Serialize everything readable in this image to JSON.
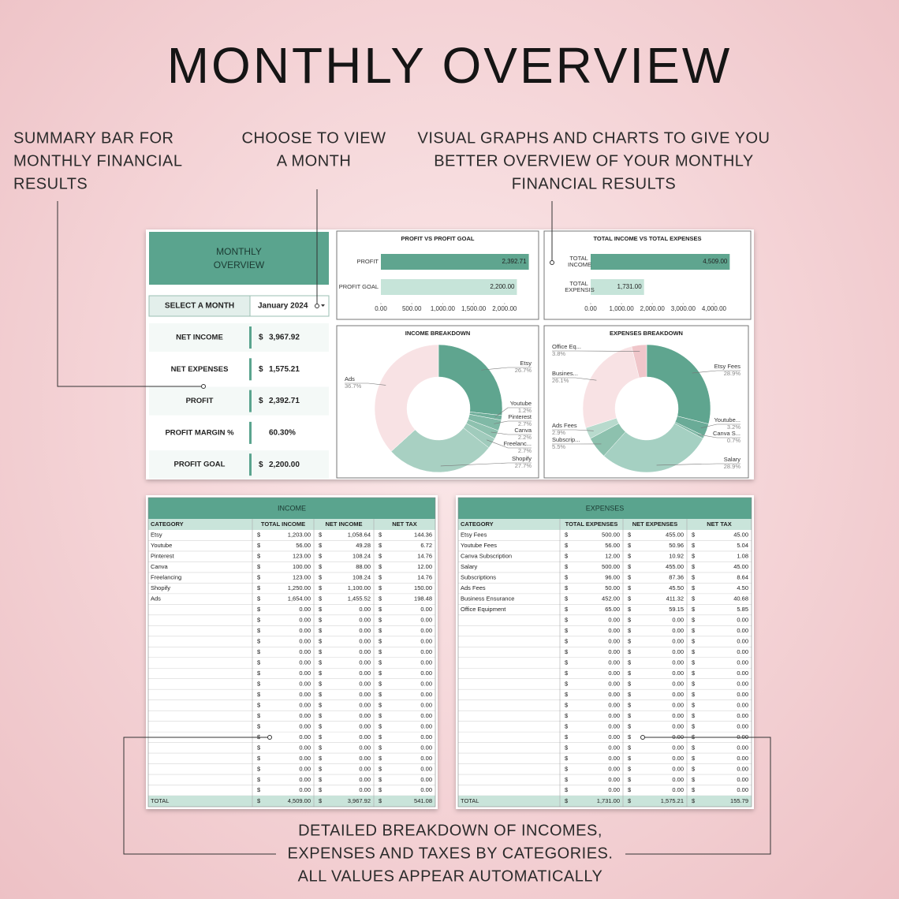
{
  "title": "MONTHLY OVERVIEW",
  "callouts": [
    [
      "SUMMARY BAR FOR",
      "MONTHLY FINANCIAL",
      "RESULTS"
    ],
    [
      "CHOOSE TO VIEW",
      "A MONTH"
    ],
    [
      "VISUAL GRAPHS AND CHARTS TO GIVE YOU",
      "BETTER OVERVIEW OF YOUR MONTHLY",
      "FINANCIAL RESULTS"
    ]
  ],
  "summary": {
    "header": [
      "MONTHLY",
      "OVERVIEW"
    ],
    "select_label": "SELECT A MONTH",
    "selected_month": "January 2024",
    "items": [
      {
        "label": "NET INCOME",
        "currency": "$",
        "value": "3,967.92"
      },
      {
        "label": "NET EXPENSES",
        "currency": "$",
        "value": "1,575.21"
      },
      {
        "label": "PROFIT",
        "currency": "$",
        "value": "2,392.71"
      },
      {
        "label": "PROFIT MARGIN  %",
        "value": "60.30%"
      },
      {
        "label": "PROFIT GOAL",
        "currency": "$",
        "value": "2,200.00"
      }
    ]
  },
  "chart_data": [
    {
      "type": "hbar",
      "title": "PROFIT  VS PROFIT GOAL",
      "categories": [
        "PROFIT",
        "PROFIT GOAL"
      ],
      "values": [
        2392.71,
        2200
      ],
      "value_labels": [
        "2,392.71",
        "2,200.00"
      ],
      "colors": [
        "#5fa58f",
        "#c6e4d9"
      ],
      "xlim": [
        0,
        2500
      ],
      "xticks": [
        {
          "value": 0,
          "label": "0.00"
        },
        {
          "value": 500,
          "label": "500.00"
        },
        {
          "value": 1000,
          "label": "1,000.00"
        },
        {
          "value": 1500,
          "label": "1,500.00"
        },
        {
          "value": 2000,
          "label": "2,000.00"
        }
      ]
    },
    {
      "type": "hbar",
      "title": "TOTAL INCOME VS TOTAL EXPENSES",
      "categories": [
        "TOTAL INCOME",
        "TOTAL EXPENSIS"
      ],
      "values": [
        4509,
        1731
      ],
      "value_labels": [
        "4,509.00",
        "1,731.00"
      ],
      "colors": [
        "#5fa58f",
        "#c6e4d9"
      ],
      "xlim": [
        0,
        4500
      ],
      "xticks": [
        {
          "value": 0,
          "label": "0.00"
        },
        {
          "value": 1000,
          "label": "1,000.00"
        },
        {
          "value": 2000,
          "label": "2,000.00"
        },
        {
          "value": 3000,
          "label": "3,000.00"
        },
        {
          "value": 4000,
          "label": "4,000.00"
        }
      ]
    },
    {
      "type": "donut",
      "title": "INCOME BREAKDOWN",
      "categories": [
        "Etsy",
        "Youtube",
        "Pinterest",
        "Canva",
        "Freelanc...",
        "Shopify",
        "Ads"
      ],
      "values": [
        26.7,
        1.2,
        2.7,
        2.2,
        2.7,
        27.7,
        36.7
      ],
      "value_labels": [
        "26.7%",
        "1.2%",
        "2.7%",
        "2.2%",
        "2.7%",
        "27.7%",
        "36.7%"
      ],
      "colors": [
        "#5fa58f",
        "#6fae9a",
        "#80b9a6",
        "#8ec1af",
        "#a0cbbc",
        "#a8d0c2",
        "#f8e2e4"
      ]
    },
    {
      "type": "donut",
      "title": "EXPENSES BREAKDOWN",
      "categories": [
        "Etsy Fees",
        "Youtube...",
        "Canva S...",
        "Salary",
        "Subscrip...",
        "Ads Fees",
        "Busines...",
        "Office Eq..."
      ],
      "values": [
        28.9,
        3.2,
        0.7,
        28.9,
        5.5,
        2.9,
        26.1,
        3.8
      ],
      "value_labels": [
        "28.9%",
        "3.2%",
        "0.7%",
        "28.9%",
        "5.5%",
        "2.9%",
        "26.1%",
        "3.8%"
      ],
      "colors": [
        "#5fa58f",
        "#6aab97",
        "#7db7a4",
        "#a5d0c2",
        "#8dc1ae",
        "#b8dacd",
        "#f8e2e4",
        "#f0c6ca"
      ]
    }
  ],
  "income_table": {
    "title": "INCOME",
    "columns": [
      "CATEGORY",
      "TOTAL INCOME",
      "NET INCOME",
      "NET TAX"
    ],
    "currency": "$",
    "rows": [
      [
        "Etsy",
        "1,203.00",
        "1,058.64",
        "144.36"
      ],
      [
        "Youtube",
        "56.00",
        "49.28",
        "6.72"
      ],
      [
        "Pinterest",
        "123.00",
        "108.24",
        "14.76"
      ],
      [
        "Canva",
        "100.00",
        "88.00",
        "12.00"
      ],
      [
        "Freelancing",
        "123.00",
        "108.24",
        "14.76"
      ],
      [
        "Shopify",
        "1,250.00",
        "1,100.00",
        "150.00"
      ],
      [
        "Ads",
        "1,654.00",
        "1,455.52",
        "198.48"
      ],
      [
        null,
        "0.00",
        "0.00",
        "0.00"
      ],
      [
        null,
        "0.00",
        "0.00",
        "0.00"
      ],
      [
        null,
        "0.00",
        "0.00",
        "0.00"
      ],
      [
        null,
        "0.00",
        "0.00",
        "0.00"
      ],
      [
        null,
        "0.00",
        "0.00",
        "0.00"
      ],
      [
        null,
        "0.00",
        "0.00",
        "0.00"
      ],
      [
        null,
        "0.00",
        "0.00",
        "0.00"
      ],
      [
        null,
        "0.00",
        "0.00",
        "0.00"
      ],
      [
        null,
        "0.00",
        "0.00",
        "0.00"
      ],
      [
        null,
        "0.00",
        "0.00",
        "0.00"
      ],
      [
        null,
        "0.00",
        "0.00",
        "0.00"
      ],
      [
        null,
        "0.00",
        "0.00",
        "0.00"
      ],
      [
        null,
        "0.00",
        "0.00",
        "0.00"
      ],
      [
        null,
        "0.00",
        "0.00",
        "0.00"
      ],
      [
        null,
        "0.00",
        "0.00",
        "0.00"
      ],
      [
        null,
        "0.00",
        "0.00",
        "0.00"
      ],
      [
        null,
        "0.00",
        "0.00",
        "0.00"
      ],
      [
        null,
        "0.00",
        "0.00",
        "0.00"
      ]
    ],
    "total": [
      "TOTAL",
      "4,509.00",
      "3,967.92",
      "541.08"
    ]
  },
  "expenses_table": {
    "title": "EXPENSES",
    "columns": [
      "CATEGORY",
      "TOTAL EXPENSES",
      "NET EXPENSES",
      "NET TAX"
    ],
    "currency": "$",
    "rows": [
      [
        "Etsy Fees",
        "500.00",
        "455.00",
        "45.00"
      ],
      [
        "Youtube Fees",
        "56.00",
        "50.96",
        "5.04"
      ],
      [
        "Canva Subscription",
        "12.00",
        "10.92",
        "1.08"
      ],
      [
        "Salary",
        "500.00",
        "455.00",
        "45.00"
      ],
      [
        "Subscriptions",
        "96.00",
        "87.36",
        "8.64"
      ],
      [
        "Ads Fees",
        "50.00",
        "45.50",
        "4.50"
      ],
      [
        "Business Ensurance",
        "452.00",
        "411.32",
        "40.68"
      ],
      [
        "Office Equipment",
        "65.00",
        "59.15",
        "5.85"
      ],
      [
        null,
        "0.00",
        "0.00",
        "0.00"
      ],
      [
        null,
        "0.00",
        "0.00",
        "0.00"
      ],
      [
        null,
        "0.00",
        "0.00",
        "0.00"
      ],
      [
        null,
        "0.00",
        "0.00",
        "0.00"
      ],
      [
        null,
        "0.00",
        "0.00",
        "0.00"
      ],
      [
        null,
        "0.00",
        "0.00",
        "0.00"
      ],
      [
        null,
        "0.00",
        "0.00",
        "0.00"
      ],
      [
        null,
        "0.00",
        "0.00",
        "0.00"
      ],
      [
        null,
        "0.00",
        "0.00",
        "0.00"
      ],
      [
        null,
        "0.00",
        "0.00",
        "0.00"
      ],
      [
        null,
        "0.00",
        "0.00",
        "0.00"
      ],
      [
        null,
        "0.00",
        "0.00",
        "0.00"
      ],
      [
        null,
        "0.00",
        "0.00",
        "0.00"
      ],
      [
        null,
        "0.00",
        "0.00",
        "0.00"
      ],
      [
        null,
        "0.00",
        "0.00",
        "0.00"
      ],
      [
        null,
        "0.00",
        "0.00",
        "0.00"
      ],
      [
        null,
        "0.00",
        "0.00",
        "0.00"
      ]
    ],
    "total": [
      "TOTAL",
      "1,731.00",
      "1,575.21",
      "155.79"
    ]
  },
  "footnote": [
    "DETAILED BREAKDOWN OF INCOMES,",
    "EXPENSES AND TAXES BY CATEGORIES.",
    "ALL VALUES APPEAR AUTOMATICALLY"
  ]
}
